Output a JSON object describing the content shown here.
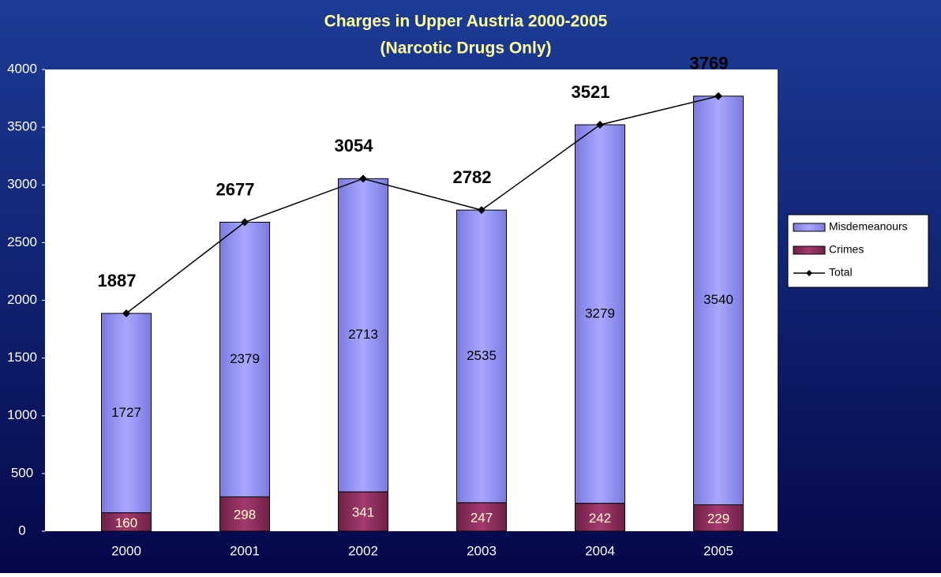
{
  "chart_data": {
    "type": "bar_line",
    "title": [
      "Charges in Upper Austria 2000-2005",
      "(Narcotic Drugs Only)"
    ],
    "categories": [
      "2000",
      "2001",
      "2002",
      "2003",
      "2004",
      "2005"
    ],
    "series": [
      {
        "name": "Misdemeanours",
        "type": "bar",
        "color": "#9999ff",
        "values": [
          1727,
          2379,
          2713,
          2535,
          3279,
          3540
        ]
      },
      {
        "name": "Crimes",
        "type": "bar",
        "color": "#993366",
        "values": [
          160,
          298,
          341,
          247,
          242,
          229
        ]
      },
      {
        "name": "Total",
        "type": "line",
        "color": "#000000",
        "values": [
          1887,
          2677,
          3054,
          2782,
          3521,
          3769
        ]
      }
    ],
    "stacked": true,
    "ylim": [
      0,
      4000
    ],
    "yticks": [
      0,
      500,
      1000,
      1500,
      2000,
      2500,
      3000,
      3500,
      4000
    ],
    "legend": "right"
  }
}
